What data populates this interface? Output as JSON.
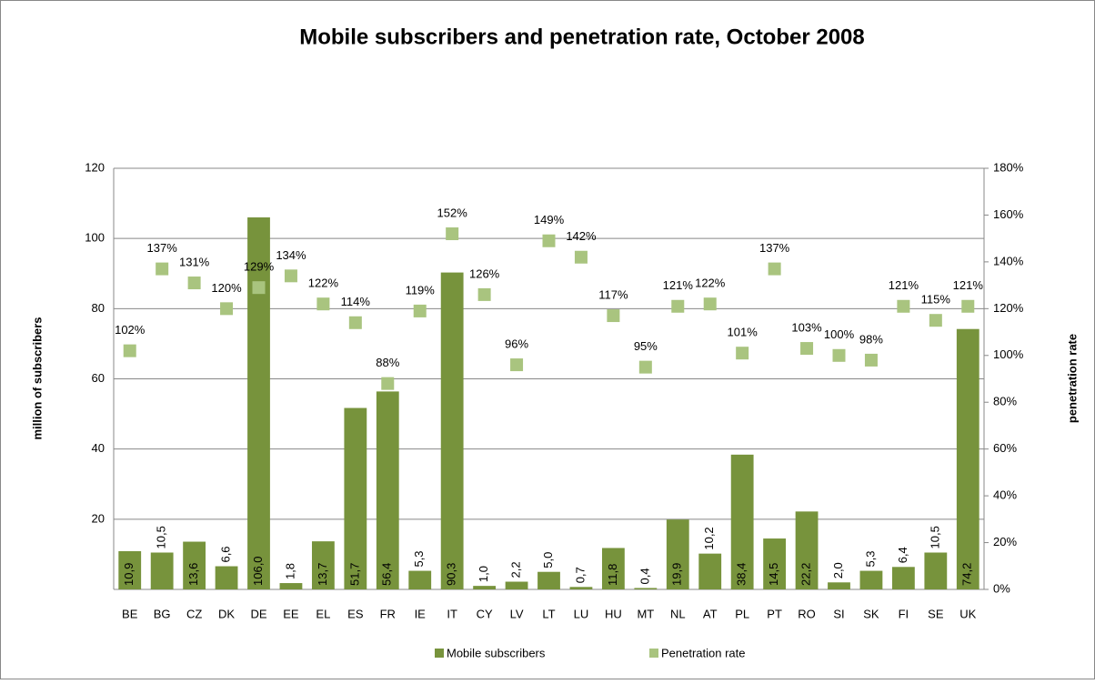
{
  "chart_data": {
    "type": "bar",
    "title": "Mobile subscribers and penetration rate, October 2008",
    "y_label": "million of subscribers",
    "y2_label": "penetration rate",
    "categories": [
      "BE",
      "BG",
      "CZ",
      "DK",
      "DE",
      "EE",
      "EL",
      "ES",
      "FR",
      "IE",
      "IT",
      "CY",
      "LV",
      "LT",
      "LU",
      "HU",
      "MT",
      "NL",
      "AT",
      "PL",
      "PT",
      "RO",
      "SI",
      "SK",
      "FI",
      "SE",
      "UK"
    ],
    "series": [
      {
        "name": "Mobile subscribers",
        "type": "bar",
        "color": "#77933c",
        "values": [
          10.9,
          10.5,
          13.6,
          6.6,
          106.0,
          1.8,
          13.7,
          51.7,
          56.4,
          5.3,
          90.3,
          1.0,
          2.2,
          5.0,
          0.7,
          11.8,
          0.4,
          19.9,
          10.2,
          38.4,
          14.5,
          22.2,
          2.0,
          5.3,
          6.4,
          10.5,
          74.2
        ],
        "value_labels": [
          "10,9",
          "10,5",
          "13,6",
          "6,6",
          "106,0",
          "1,8",
          "13,7",
          "51,7",
          "56,4",
          "5,3",
          "90,3",
          "1,0",
          "2,2",
          "5,0",
          "0,7",
          "11,8",
          "0,4",
          "19,9",
          "10,2",
          "38,4",
          "14,5",
          "22,2",
          "2,0",
          "5,3",
          "6,4",
          "10,5",
          "74,2"
        ]
      },
      {
        "name": "Penetration rate",
        "type": "scatter",
        "axis": "y2",
        "color": "#a9c47f",
        "values": [
          102,
          137,
          131,
          120,
          129,
          134,
          122,
          114,
          88,
          119,
          152,
          126,
          96,
          149,
          142,
          117,
          95,
          121,
          122,
          101,
          137,
          103,
          100,
          98,
          121,
          115,
          121
        ],
        "value_labels": [
          "102%",
          "137%",
          "131%",
          "120%",
          "129%",
          "134%",
          "122%",
          "114%",
          "88%",
          "119%",
          "152%",
          "126%",
          "96%",
          "149%",
          "142%",
          "117%",
          "95%",
          "121%",
          "122%",
          "101%",
          "137%",
          "103%",
          "100%",
          "98%",
          "121%",
          "115%",
          "121%"
        ]
      }
    ],
    "ylim": [
      0,
      120
    ],
    "yticks": [
      20,
      40,
      60,
      80,
      100,
      120
    ],
    "y2lim": [
      0,
      180
    ],
    "y2ticks": [
      {
        "value": 0,
        "label": "0%"
      },
      {
        "value": 20,
        "label": "20%"
      },
      {
        "value": 40,
        "label": "40%"
      },
      {
        "value": 60,
        "label": "60%"
      },
      {
        "value": 80,
        "label": "80%"
      },
      {
        "value": 100,
        "label": "100%"
      },
      {
        "value": 120,
        "label": "120%"
      },
      {
        "value": 140,
        "label": "140%"
      },
      {
        "value": 160,
        "label": "160%"
      },
      {
        "value": 180,
        "label": "180%"
      }
    ],
    "grid": true,
    "legend": "bottom"
  }
}
